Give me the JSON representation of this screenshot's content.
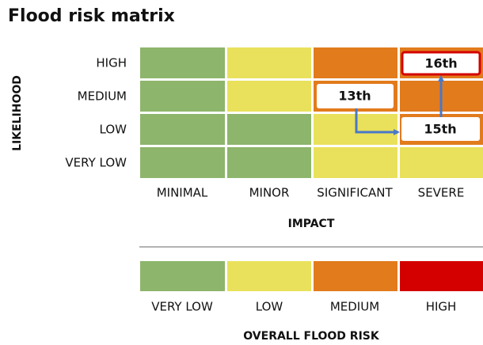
{
  "title": "Flood risk matrix",
  "likelihood_axis": {
    "title": "LIKELIHOOD",
    "labels": [
      "HIGH",
      "MEDIUM",
      "LOW",
      "VERY LOW"
    ]
  },
  "impact_axis": {
    "title": "IMPACT",
    "labels": [
      "MINIMAL",
      "MINOR",
      "SIGNIFICANT",
      "SEVERE"
    ]
  },
  "markers": [
    "13th",
    "15th",
    "16th"
  ],
  "legend": {
    "title": "OVERALL FLOOD RISK",
    "labels": [
      "VERY LOW",
      "LOW",
      "MEDIUM",
      "HIGH"
    ]
  }
}
